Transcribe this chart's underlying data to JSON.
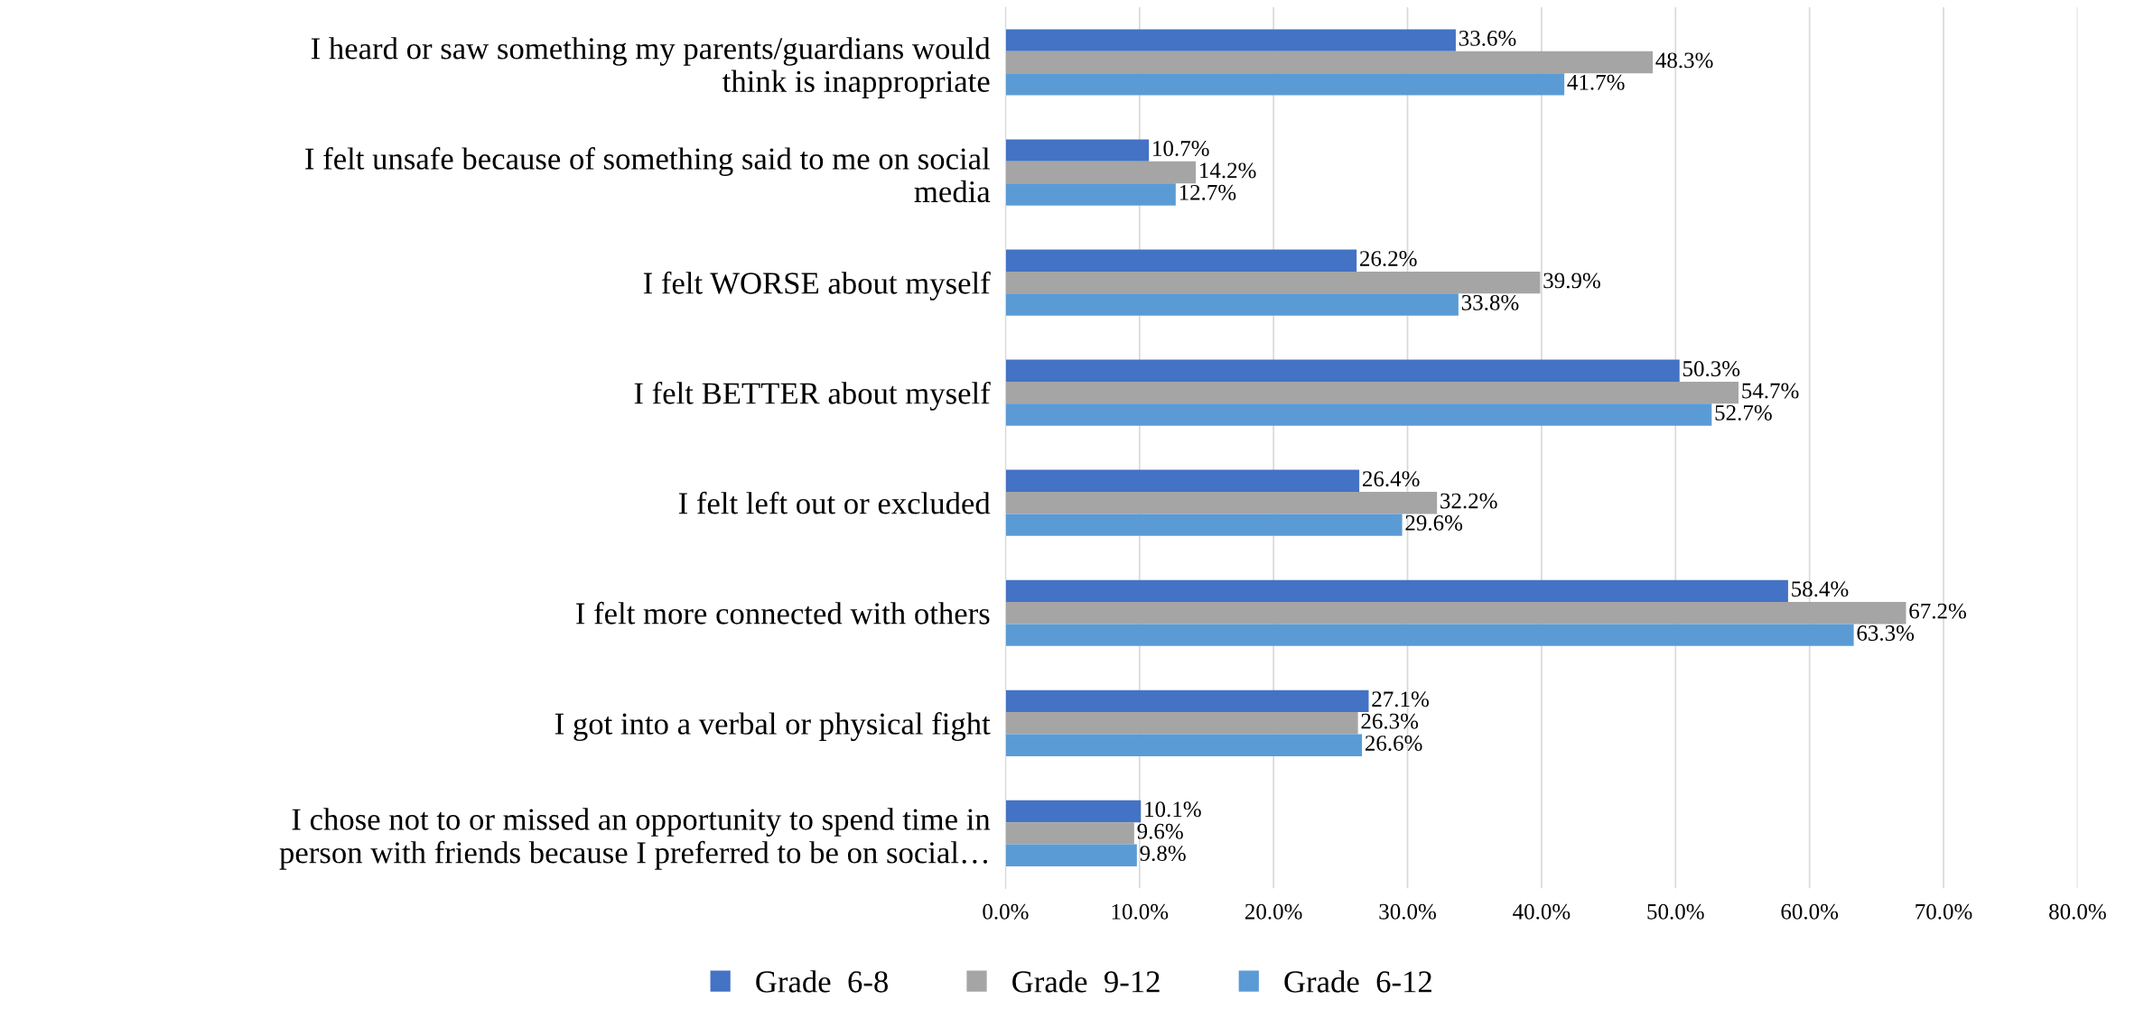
{
  "chart_data": {
    "type": "bar",
    "orientation": "horizontal",
    "categories": [
      "I heard or saw something my parents/guardians would\nthink is inappropriate",
      "I felt unsafe because of something said to me on social\nmedia",
      "I felt WORSE about myself",
      "I felt BETTER about myself",
      "I felt left out or excluded",
      "I felt more connected with others",
      "I got into a verbal or physical fight",
      "I chose not to or missed an opportunity to spend time in\nperson with friends because I preferred to be on social…"
    ],
    "series": [
      {
        "name": "Grade  6-8",
        "color": "#4472c4",
        "values": [
          33.6,
          10.7,
          26.2,
          50.3,
          26.4,
          58.4,
          27.1,
          10.1
        ],
        "value_labels": [
          "33.6%",
          "10.7%",
          "26.2%",
          "50.3%",
          "26.4%",
          "58.4%",
          "27.1%",
          "10.1%"
        ]
      },
      {
        "name": "Grade  9-12",
        "color": "#a5a5a5",
        "values": [
          48.3,
          14.2,
          39.9,
          54.7,
          32.2,
          67.2,
          26.3,
          9.6
        ],
        "value_labels": [
          "48.3%",
          "14.2%",
          "39.9%",
          "54.7%",
          "32.2%",
          "67.2%",
          "26.3%",
          "9.6%"
        ]
      },
      {
        "name": "Grade  6-12",
        "color": "#5b9bd5",
        "values": [
          41.7,
          12.7,
          33.8,
          52.7,
          29.6,
          63.3,
          26.6,
          9.8
        ],
        "value_labels": [
          "41.7%",
          "12.7%",
          "33.8%",
          "52.7%",
          "29.6%",
          "63.3%",
          "26.6%",
          "9.8%"
        ]
      }
    ],
    "xlim": [
      0,
      80
    ],
    "xticks": [
      {
        "value": 0,
        "label": "0.0%"
      },
      {
        "value": 10,
        "label": "10.0%"
      },
      {
        "value": 20,
        "label": "20.0%"
      },
      {
        "value": 30,
        "label": "30.0%"
      },
      {
        "value": 40,
        "label": "40.0%"
      },
      {
        "value": 50,
        "label": "50.0%"
      },
      {
        "value": 60,
        "label": "60.0%"
      },
      {
        "value": 70,
        "label": "70.0%"
      },
      {
        "value": 80,
        "label": "80.0%"
      }
    ],
    "grid": "x",
    "legend": "bottom"
  }
}
